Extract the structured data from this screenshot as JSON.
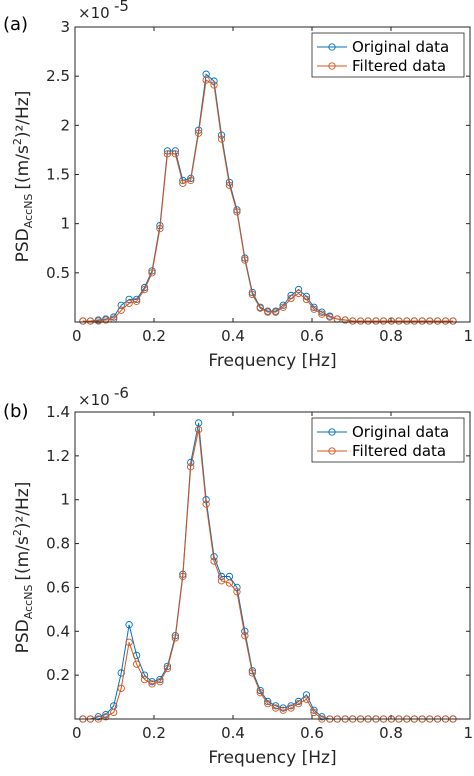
{
  "chart_data": [
    {
      "type": "line",
      "panel_label": "(a)",
      "exponent_label": "×10",
      "exponent_power": "-5",
      "xlabel": "Frequency [Hz]",
      "ylabel_main": "PSD",
      "ylabel_sub": "AccNS",
      "ylabel_rest": "[(m/s",
      "ylabel_sup": "2",
      "ylabel_end": ")²/Hz]",
      "xlim": [
        0,
        1
      ],
      "ylim": [
        0,
        3
      ],
      "xticks": [
        "0",
        "0.2",
        "0.4",
        "0.6",
        "0.8",
        "1"
      ],
      "xtick_values": [
        0,
        0.2,
        0.4,
        0.6,
        0.8,
        1
      ],
      "yticks": [
        "0.5",
        "1",
        "1.5",
        "2",
        "2.5",
        "3"
      ],
      "ytick_values": [
        0.5,
        1,
        1.5,
        2,
        2.5,
        3
      ],
      "legend_position": "top-right",
      "x": [
        0.02,
        0.039,
        0.059,
        0.078,
        0.098,
        0.117,
        0.137,
        0.156,
        0.176,
        0.195,
        0.215,
        0.234,
        0.254,
        0.273,
        0.293,
        0.313,
        0.332,
        0.352,
        0.371,
        0.391,
        0.41,
        0.43,
        0.449,
        0.469,
        0.488,
        0.508,
        0.527,
        0.547,
        0.566,
        0.586,
        0.605,
        0.625,
        0.645,
        0.664,
        0.684,
        0.703,
        0.723,
        0.742,
        0.762,
        0.781,
        0.801,
        0.82,
        0.84,
        0.859,
        0.879,
        0.898,
        0.918,
        0.938,
        0.957
      ],
      "series": [
        {
          "name": "Original data",
          "color": "#0072BD",
          "values": [
            0.01,
            0.01,
            0.02,
            0.03,
            0.05,
            0.17,
            0.23,
            0.23,
            0.35,
            0.52,
            0.98,
            1.74,
            1.74,
            1.44,
            1.46,
            1.95,
            2.52,
            2.45,
            1.9,
            1.42,
            1.14,
            0.65,
            0.3,
            0.15,
            0.11,
            0.11,
            0.17,
            0.27,
            0.33,
            0.26,
            0.15,
            0.1,
            0.06,
            0.03,
            0.02,
            0.01,
            0.01,
            0.01,
            0.01,
            0.01,
            0.01,
            0.01,
            0.01,
            0.01,
            0.01,
            0.01,
            0.01,
            0.01,
            0.01
          ]
        },
        {
          "name": "Filtered data",
          "color": "#D95319",
          "values": [
            0.01,
            0.01,
            0.01,
            0.02,
            0.03,
            0.12,
            0.19,
            0.21,
            0.33,
            0.5,
            0.95,
            1.71,
            1.71,
            1.41,
            1.44,
            1.92,
            2.46,
            2.41,
            1.86,
            1.39,
            1.12,
            0.63,
            0.28,
            0.14,
            0.1,
            0.1,
            0.15,
            0.24,
            0.29,
            0.23,
            0.13,
            0.08,
            0.05,
            0.03,
            0.02,
            0.01,
            0.01,
            0.01,
            0.01,
            0.01,
            0.01,
            0.01,
            0.01,
            0.01,
            0.01,
            0.01,
            0.01,
            0.01,
            0.01
          ]
        }
      ]
    },
    {
      "type": "line",
      "panel_label": "(b)",
      "exponent_label": "×10",
      "exponent_power": "-6",
      "xlabel": "Frequency [Hz]",
      "ylabel_main": "PSD",
      "ylabel_sub": "AccNS",
      "ylabel_rest": "[(m/s",
      "ylabel_sup": "2",
      "ylabel_end": ")²/Hz]",
      "xlim": [
        0,
        1
      ],
      "ylim": [
        0,
        1.4
      ],
      "xticks": [
        "0",
        "0.2",
        "0.4",
        "0.6",
        "0.8",
        "1"
      ],
      "xtick_values": [
        0,
        0.2,
        0.4,
        0.6,
        0.8,
        1
      ],
      "yticks": [
        "0.2",
        "0.4",
        "0.6",
        "0.8",
        "1",
        "1.2",
        "1.4"
      ],
      "ytick_values": [
        0.2,
        0.4,
        0.6,
        0.8,
        1,
        1.2,
        1.4
      ],
      "legend_position": "top-right",
      "x": [
        0.02,
        0.039,
        0.059,
        0.078,
        0.098,
        0.117,
        0.137,
        0.156,
        0.176,
        0.195,
        0.215,
        0.234,
        0.254,
        0.273,
        0.293,
        0.313,
        0.332,
        0.352,
        0.371,
        0.391,
        0.41,
        0.43,
        0.449,
        0.469,
        0.488,
        0.508,
        0.527,
        0.547,
        0.566,
        0.586,
        0.605,
        0.625,
        0.645,
        0.664,
        0.684,
        0.703,
        0.723,
        0.742,
        0.762,
        0.781,
        0.801,
        0.82,
        0.84,
        0.859,
        0.879,
        0.898,
        0.918,
        0.938,
        0.957
      ],
      "series": [
        {
          "name": "Original data",
          "color": "#0072BD",
          "values": [
            0.0,
            0.0,
            0.01,
            0.02,
            0.06,
            0.21,
            0.43,
            0.29,
            0.2,
            0.17,
            0.18,
            0.24,
            0.38,
            0.66,
            1.17,
            1.35,
            1.0,
            0.74,
            0.65,
            0.65,
            0.6,
            0.4,
            0.22,
            0.13,
            0.08,
            0.06,
            0.05,
            0.06,
            0.08,
            0.11,
            0.04,
            0.01,
            0.0,
            0.0,
            0.0,
            0.0,
            0.0,
            0.0,
            0.0,
            0.0,
            0.0,
            0.0,
            0.0,
            0.0,
            0.0,
            0.0,
            0.0,
            0.0,
            0.0
          ]
        },
        {
          "name": "Filtered data",
          "color": "#D95319",
          "values": [
            0.0,
            0.0,
            0.0,
            0.01,
            0.03,
            0.14,
            0.35,
            0.25,
            0.18,
            0.16,
            0.17,
            0.23,
            0.37,
            0.65,
            1.15,
            1.32,
            0.98,
            0.72,
            0.63,
            0.62,
            0.58,
            0.38,
            0.21,
            0.12,
            0.07,
            0.05,
            0.04,
            0.05,
            0.07,
            0.09,
            0.03,
            0.0,
            0.0,
            0.0,
            0.0,
            0.0,
            0.0,
            0.0,
            0.0,
            0.0,
            0.0,
            0.0,
            0.0,
            0.0,
            0.0,
            0.0,
            0.0,
            0.0,
            0.0
          ]
        }
      ]
    }
  ]
}
